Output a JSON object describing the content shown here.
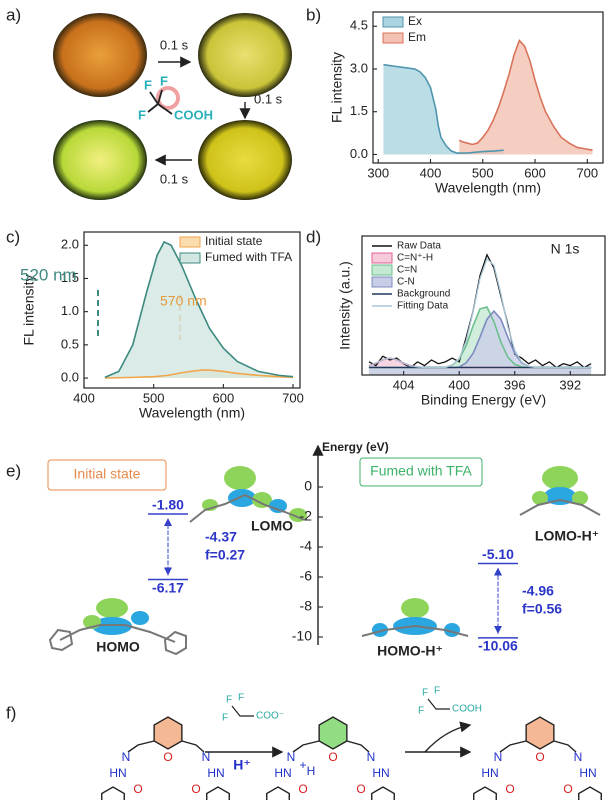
{
  "panel_labels": [
    "a)",
    "b)",
    "c)",
    "d)",
    "e)",
    "f)"
  ],
  "panel_a": {
    "steps": [
      "0.1 s",
      "0.1 s",
      "0.1 s"
    ],
    "acid": {
      "atoms": [
        "F",
        "F",
        "F"
      ],
      "group": "COOH"
    }
  },
  "chart_data": [
    {
      "type": "area",
      "xlabel": "Wavelength (nm)",
      "ylabel": "FL intensity",
      "xlim": [
        290,
        730
      ],
      "ylim": [
        -0.3,
        5.0
      ],
      "xticks": [
        300,
        400,
        500,
        600,
        700
      ],
      "yticks": [
        {
          "value": 0,
          "label": "0.0"
        },
        {
          "value": 1.5,
          "label": "1.5"
        },
        {
          "value": 3,
          "label": "3.0"
        },
        {
          "value": 4.5,
          "label": "4.5"
        }
      ],
      "legend": "upper left",
      "series": [
        {
          "name": "Ex",
          "color": "#4f95ad",
          "fill": "#a9d4e0",
          "x": [
            310,
            330,
            350,
            370,
            380,
            390,
            400,
            410,
            415,
            420,
            430,
            440,
            450,
            470,
            500,
            520,
            540
          ],
          "values": [
            3.15,
            3.1,
            3.05,
            3.0,
            2.9,
            2.7,
            2.35,
            1.6,
            1.0,
            0.6,
            0.3,
            0.12,
            0.05,
            0.05,
            0.1,
            0.12,
            0.15
          ]
        },
        {
          "name": "Em",
          "color": "#d9735a",
          "fill": "#f4c2b2",
          "x": [
            455,
            460,
            470,
            480,
            490,
            500,
            510,
            520,
            530,
            540,
            550,
            560,
            570,
            580,
            590,
            600,
            610,
            620,
            635,
            650,
            665,
            680,
            695,
            710
          ],
          "values": [
            0.5,
            0.45,
            0.4,
            0.35,
            0.4,
            0.6,
            0.85,
            1.2,
            1.65,
            2.2,
            2.8,
            3.5,
            4.0,
            3.8,
            3.3,
            2.6,
            2.0,
            1.5,
            1.0,
            0.6,
            0.4,
            0.25,
            0.2,
            0.15
          ]
        }
      ]
    },
    {
      "type": "area",
      "xlabel": "Wavelength (nm)",
      "ylabel": "FL intensity",
      "xlim": [
        400,
        710
      ],
      "ylim": [
        -0.15,
        2.2
      ],
      "xticks": [
        400,
        500,
        600,
        700
      ],
      "yticks": [
        {
          "value": 0,
          "label": "0.0"
        },
        {
          "value": 0.5,
          "label": "0.5"
        },
        {
          "value": 1,
          "label": "1.0"
        },
        {
          "value": 1.5,
          "label": "1.5"
        },
        {
          "value": 2,
          "label": "2.0"
        }
      ],
      "legend": "upper right",
      "annotations": [
        {
          "text": "520 nm",
          "color": "#3e8a80"
        },
        {
          "text": "570 nm",
          "color": "#e39a3c"
        }
      ],
      "series": [
        {
          "name": "Initial state",
          "color": "#f0a64a",
          "fill": "#fbdcae",
          "x": [
            430,
            470,
            500,
            520,
            540,
            560,
            570,
            580,
            600,
            620,
            650,
            680,
            700
          ],
          "values": [
            0.0,
            0.01,
            0.02,
            0.04,
            0.08,
            0.11,
            0.12,
            0.12,
            0.1,
            0.07,
            0.04,
            0.02,
            0.01
          ]
        },
        {
          "name": "Fumed with TFA",
          "color": "#3c8a80",
          "fill": "#d2e7e2",
          "x": [
            430,
            450,
            470,
            490,
            505,
            515,
            525,
            540,
            560,
            580,
            600,
            620,
            650,
            680,
            700
          ],
          "values": [
            0.01,
            0.1,
            0.5,
            1.3,
            1.85,
            2.05,
            2.0,
            1.7,
            1.2,
            0.75,
            0.45,
            0.25,
            0.1,
            0.04,
            0.02
          ]
        }
      ]
    },
    {
      "type": "line",
      "title": "N 1s",
      "xlabel": "Binding Energy (eV)",
      "ylabel": "Intensity (a.u.)",
      "xlim": [
        407,
        389.5
      ],
      "ylim": [
        0.6,
        8
      ],
      "xticks": [
        404,
        400,
        396,
        392
      ],
      "legend": "upper left",
      "x": [
        406.5,
        406,
        405.5,
        405,
        404.5,
        404,
        403.5,
        403,
        402.5,
        402,
        401.5,
        401,
        400.5,
        400,
        399.5,
        399,
        398.5,
        398,
        397.5,
        397,
        396.5,
        396,
        395.5,
        395,
        394.5,
        394,
        393.5,
        393,
        392.5,
        392,
        391.5,
        391,
        390.5
      ],
      "series": [
        {
          "name": "Raw Data",
          "color": "#111111",
          "values": [
            1.3,
            1.1,
            1.6,
            1.4,
            1.5,
            1.2,
            1.0,
            1.3,
            1.1,
            1.4,
            1.2,
            1.3,
            1.5,
            1.3,
            2.6,
            4.0,
            5.9,
            7.0,
            6.3,
            4.8,
            3.3,
            1.7,
            1.5,
            1.2,
            1.4,
            1.1,
            1.3,
            1.0,
            1.2,
            1.1,
            1.3,
            1.0,
            1.2
          ]
        },
        {
          "name": "C=N⁺-H",
          "color": "#e0609a",
          "fill": "#f6cadb",
          "values": [
            1.09,
            1.23,
            1.41,
            1.5,
            1.41,
            1.23,
            1.09,
            1.03,
            1,
            1,
            1,
            1,
            1,
            1,
            1,
            1,
            1,
            1,
            1,
            1,
            1,
            1,
            1,
            1,
            1,
            1,
            1,
            1,
            1,
            1,
            1,
            1,
            1
          ]
        },
        {
          "name": "C=N",
          "color": "#6cc08e",
          "fill": "#c6e9d3",
          "values": [
            1,
            1,
            1,
            1,
            1,
            1,
            1,
            1,
            1,
            1,
            1,
            1,
            1.13,
            1.45,
            2.16,
            3.22,
            4.12,
            4.22,
            3.44,
            2.36,
            1.55,
            1.17,
            1.04,
            1,
            1,
            1,
            1,
            1,
            1,
            1,
            1,
            1,
            1
          ]
        },
        {
          "name": "C-N",
          "color": "#7d8cc0",
          "fill": "#c9cee8",
          "values": [
            1,
            1,
            1,
            1,
            1,
            1,
            1,
            1,
            1,
            1,
            1,
            1,
            1,
            1.02,
            1.25,
            1.75,
            2.62,
            3.57,
            4.0,
            3.57,
            2.62,
            1.75,
            1.25,
            1.06,
            1,
            1,
            1,
            1,
            1,
            1,
            1,
            1,
            1
          ]
        },
        {
          "name": "Background",
          "color": "#1f3a5a",
          "values": [
            1,
            1,
            1,
            1,
            1,
            1,
            1,
            1,
            1,
            1,
            1,
            1,
            1,
            1,
            1,
            1,
            1,
            1,
            1,
            1,
            1,
            1,
            1,
            1,
            1,
            1,
            1,
            1,
            1,
            1,
            1,
            1,
            1
          ]
        },
        {
          "name": "Fitting Data",
          "color": "#a9c6d6",
          "values": [
            1.09,
            1.23,
            1.41,
            1.5,
            1.41,
            1.23,
            1.09,
            1.03,
            1,
            1,
            1,
            1,
            1.13,
            1.47,
            2.41,
            3.97,
            5.74,
            6.79,
            6.44,
            4.93,
            3.17,
            1.92,
            1.29,
            1.06,
            1,
            1,
            1,
            1,
            1,
            1,
            1,
            1,
            1
          ]
        }
      ]
    },
    {
      "type": "energy-levels",
      "ylabel": "Energy (eV)",
      "ylim": [
        -10.8,
        2.2
      ],
      "yticks": [
        0,
        -2,
        -4,
        -6,
        -8,
        -10
      ],
      "states": [
        {
          "name": "Initial state",
          "color": "#e8894a",
          "levels": [
            {
              "name": "LOMO",
              "value": -1.8,
              "label": "-1.80"
            },
            {
              "name": "HOMO",
              "value": -6.17,
              "label": "-6.17"
            }
          ],
          "gap": "-4.37",
          "f": "f=0.27"
        },
        {
          "name": "Fumed with TFA",
          "color": "#3cb36a",
          "levels": [
            {
              "name": "LOMO-H⁺",
              "value": -5.1,
              "label": "-5.10"
            },
            {
              "name": "HOMO-H⁺",
              "value": -10.06,
              "label": "-10.06"
            }
          ],
          "gap": "-4.96",
          "f": "f=0.56"
        }
      ]
    }
  ],
  "panel_f": {
    "steps": [
      {
        "atoms": [
          "F",
          "F",
          "F"
        ],
        "group": "COO⁻",
        "condition": "H⁺"
      },
      {
        "atoms": [
          "F",
          "F",
          "F"
        ],
        "group": "COOH"
      }
    ],
    "molecules": [
      {
        "labels": [
          "N",
          "HN",
          "O",
          "O",
          "N",
          "HN",
          "O"
        ]
      },
      {
        "labels": [
          "N",
          "HN",
          "O",
          "O",
          "N",
          "HN",
          "O",
          "H",
          "+"
        ]
      },
      {
        "labels": [
          "N",
          "HN",
          "O",
          "O",
          "N",
          "HN",
          "O"
        ]
      }
    ]
  }
}
